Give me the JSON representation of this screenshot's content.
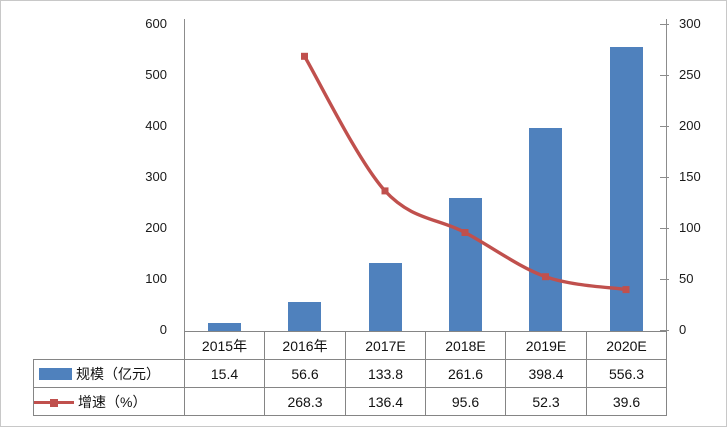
{
  "figure": {
    "background": "#ffffff",
    "border_color": "#c8c8c8",
    "axis_color": "#8c8c8c",
    "table_border_color": "#858585",
    "text_color": "#111111"
  },
  "chart_data": {
    "type": "bar",
    "subtype": "combo-bar-line-with-data-table",
    "categories": [
      "2015年",
      "2016年",
      "2017E",
      "2018E",
      "2019E",
      "2020E"
    ],
    "series": [
      {
        "name": "规模（亿元）",
        "type": "bar",
        "axis": "left",
        "color": "#4f81bd",
        "values": [
          15.4,
          56.6,
          133.8,
          261.6,
          398.4,
          556.3
        ],
        "table_row": [
          "15.4",
          "56.6",
          "133.8",
          "261.6",
          "398.4",
          "556.3"
        ]
      },
      {
        "name": "增速（%）",
        "type": "line",
        "axis": "right",
        "color": "#c0504d",
        "values": [
          null,
          268.3,
          136.4,
          95.6,
          52.3,
          39.6
        ],
        "table_row": [
          "",
          "268.3",
          "136.4",
          "95.6",
          "52.3",
          "39.6"
        ]
      }
    ],
    "left_axis": {
      "min": 0,
      "max": 600,
      "step": 100,
      "ticks": [
        "600",
        "500",
        "400",
        "300",
        "200",
        "100",
        "0"
      ]
    },
    "right_axis": {
      "min": 0,
      "max": 300,
      "step": 50,
      "ticks": [
        "300",
        "250",
        "200",
        "150",
        "100",
        "50",
        "0"
      ]
    },
    "grid": false,
    "legend_position": "data-table-left",
    "title": ""
  }
}
